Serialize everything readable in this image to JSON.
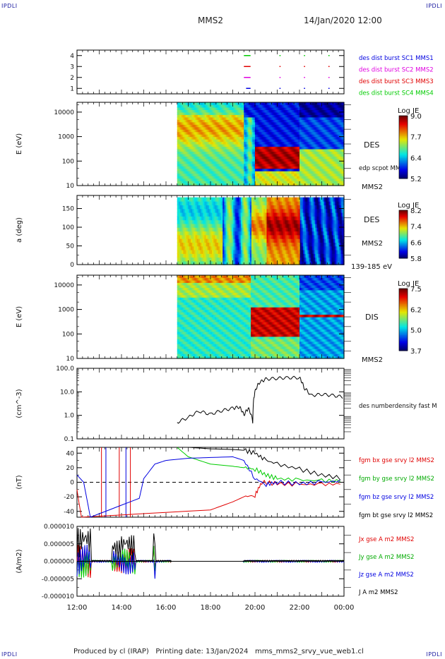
{
  "corners": {
    "tl": "IPDLI",
    "tr": "IPDLI",
    "bl": "IPDLI",
    "br": "IPDLI"
  },
  "header": {
    "spacecraft": "MMS2",
    "datetime": "14/Jan/2020 12:00"
  },
  "footer": {
    "produced": "Produced by cl (IRAP)",
    "printing_date": "Printing date: 13/Jan/2024",
    "filename": "mms_mms2_srvy_vue_web1.cl"
  },
  "time_axis": {
    "ticks": [
      "12:00",
      "14:00",
      "16:00",
      "18:00",
      "20:00",
      "22:00",
      "00:00"
    ]
  },
  "colors": {
    "red": "#e00000",
    "green": "#00cc00",
    "blue": "#0000e0",
    "black": "#000000",
    "magenta": "#e000e0"
  },
  "chart_data": [
    {
      "type": "scatter",
      "panel": "burst",
      "yticks": [
        "1",
        "2",
        "3",
        "4"
      ],
      "legend": [
        "des dist burst SC1 MMS1",
        "des dist burst SC2 MMS2",
        "des dist burst SC3 MMS3",
        "des dist burst SC4 MMS4"
      ],
      "series": [
        {
          "name": "des dist burst SC1 MMS1",
          "color": "#0000e0",
          "y": 1,
          "intervals": [
            [
              19.6,
              19.8
            ],
            [
              21.1,
              21.15
            ],
            [
              22.2,
              22.25
            ],
            [
              23.3,
              23.35
            ]
          ]
        },
        {
          "name": "des dist burst SC2 MMS2",
          "color": "#e000e0",
          "y": 2,
          "intervals": [
            [
              19.5,
              19.8
            ],
            [
              21.1,
              21.15
            ],
            [
              22.2,
              22.25
            ],
            [
              23.3,
              23.35
            ]
          ]
        },
        {
          "name": "des dist burst SC3 MMS3",
          "color": "#e00000",
          "y": 3,
          "intervals": [
            [
              19.5,
              19.8
            ],
            [
              21.1,
              21.15
            ],
            [
              22.2,
              22.25
            ],
            [
              23.3,
              23.35
            ]
          ]
        },
        {
          "name": "des dist burst SC4 MMS4",
          "color": "#00cc00",
          "y": 4,
          "intervals": [
            [
              19.5,
              19.8
            ],
            [
              21.1,
              21.15
            ],
            [
              22.2,
              22.25
            ],
            [
              23.3,
              23.35
            ]
          ]
        }
      ]
    },
    {
      "type": "heatmap",
      "panel": "des_energy",
      "ylabel": "E (eV)",
      "yticks": [
        "10",
        "100",
        "1000",
        "10000"
      ],
      "right_labels": [
        "DES",
        "edp scpot MMS2",
        "MMS2"
      ],
      "colorbar": {
        "title": "Log JE",
        "ticks": [
          "9.0",
          "7.7",
          "6.4",
          "5.2"
        ]
      }
    },
    {
      "type": "heatmap",
      "panel": "des_pitch",
      "ylabel": "a (deg)",
      "yticks": [
        "0",
        "50",
        "100",
        "150"
      ],
      "right_labels": [
        "DES",
        "MMS2",
        "139-185 eV"
      ],
      "colorbar": {
        "title": "Log JE",
        "ticks": [
          "8.2",
          "7.4",
          "6.6",
          "5.8"
        ]
      }
    },
    {
      "type": "heatmap",
      "panel": "dis_energy",
      "ylabel": "E (eV)",
      "yticks": [
        "10",
        "100",
        "1000",
        "10000"
      ],
      "right_labels": [
        "DIS",
        "MMS2"
      ],
      "colorbar": {
        "title": "Log JE",
        "ticks": [
          "7.5",
          "6.2",
          "5.0",
          "3.7"
        ]
      }
    },
    {
      "type": "line",
      "panel": "density",
      "ylabel": "(cm^-3)",
      "yticks": [
        "0.1",
        "1.0",
        "10.0",
        "100.0"
      ],
      "ylim": [
        0.1,
        100
      ],
      "yscale": "log",
      "legend": [
        "des numberdensity fast M"
      ],
      "series": [
        {
          "name": "des numberdensity fast M",
          "color": "#000000",
          "x": [
            16.5,
            17.0,
            17.5,
            18.0,
            18.5,
            19.0,
            19.3,
            19.5,
            19.7,
            19.9,
            20.0,
            20.2,
            20.5,
            21.0,
            21.5,
            22.0,
            22.2,
            22.5,
            23.0,
            23.5,
            24.0
          ],
          "y": [
            0.5,
            0.8,
            1.5,
            1.1,
            1.6,
            2.0,
            2.3,
            1.0,
            2.0,
            0.5,
            10,
            25,
            35,
            38,
            40,
            40,
            15,
            7,
            8,
            7,
            6
          ]
        }
      ]
    },
    {
      "type": "line",
      "panel": "bfield",
      "ylabel": "(nT)",
      "yticks": [
        "-40",
        "-20",
        "0",
        "20",
        "40"
      ],
      "ylim": [
        -48,
        48
      ],
      "legend": [
        "fgm bx gse srvy l2 MMS2",
        "fgm by gse srvy l2 MMS2",
        "fgm bz gse srvy l2 MMS2",
        "fgm bt gse srvy l2 MMS2"
      ],
      "series": [
        {
          "name": "fgm bx gse srvy l2 MMS2",
          "color": "#e00000",
          "x": [
            12.0,
            12.1,
            12.2,
            18.0,
            19.0,
            19.5,
            20.0,
            20.3,
            21.0,
            22.0,
            23.0,
            24.0
          ],
          "y": [
            -10,
            -30,
            -48,
            -38,
            -27,
            -20,
            -18,
            0,
            -2,
            -3,
            -3,
            -2
          ]
        },
        {
          "name": "fgm by gse srvy l2 MMS2",
          "color": "#00cc00",
          "x": [
            16.5,
            17.0,
            18.0,
            19.0,
            19.5,
            20.0,
            20.5,
            21.0,
            22.0,
            23.0,
            24.0
          ],
          "y": [
            48,
            35,
            25,
            22,
            20,
            18,
            10,
            5,
            3,
            2,
            2
          ]
        },
        {
          "name": "fgm bz gse srvy l2 MMS2",
          "color": "#0000e0",
          "x": [
            12.0,
            12.3,
            12.6,
            14.8,
            15.0,
            15.5,
            16.0,
            17.0,
            18.0,
            19.0,
            19.5,
            20.0,
            20.5,
            21.0,
            22.0,
            23.0,
            24.0
          ],
          "y": [
            10,
            0,
            -48,
            -22,
            5,
            25,
            30,
            33,
            34,
            35,
            30,
            5,
            -3,
            0,
            -2,
            0,
            2
          ]
        },
        {
          "name": "fgm bt gse srvy l2 MMS2",
          "color": "#000000",
          "x": [
            17.0,
            18.0,
            19.0,
            19.5,
            20.0,
            20.5,
            21.0,
            22.0,
            23.0,
            24.0
          ],
          "y": [
            48,
            46,
            45,
            44,
            40,
            30,
            25,
            18,
            10,
            5
          ]
        }
      ]
    },
    {
      "type": "line",
      "panel": "current",
      "ylabel": "(A/m2)",
      "yticks": [
        "-0.000010",
        "-0.000005",
        "0.000000",
        "0.000005",
        "0.000010"
      ],
      "ylim": [
        -1e-05,
        1e-05
      ],
      "legend": [
        "Jx gse A m2 MMS2",
        "Jy gse A m2 MMS2",
        "Jz gse A m2 MMS2",
        "J A m2 MMS2"
      ],
      "series": [
        {
          "name": "Jx gse A m2 MMS2",
          "color": "#e00000"
        },
        {
          "name": "Jy gse A m2 MMS2",
          "color": "#00cc00"
        },
        {
          "name": "Jz gse A m2 MMS2",
          "color": "#0000e0"
        },
        {
          "name": "J A m2 MMS2",
          "color": "#000000"
        }
      ]
    }
  ]
}
